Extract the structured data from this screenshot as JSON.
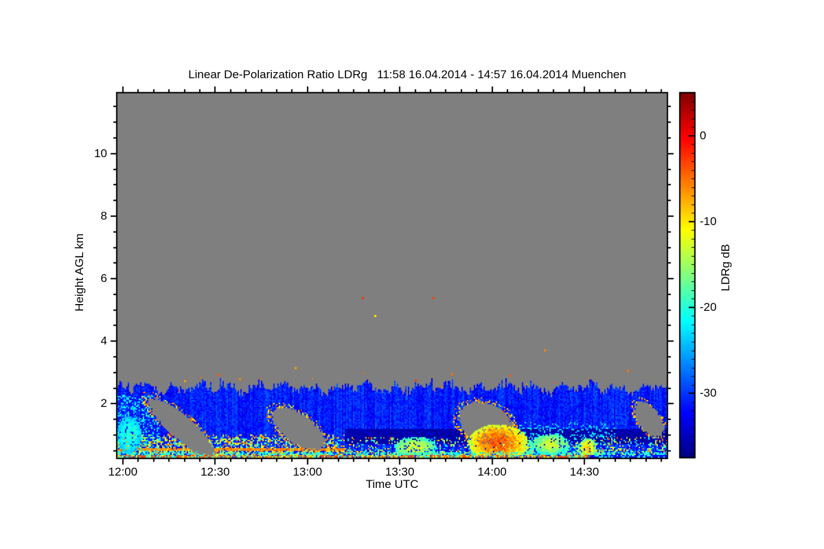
{
  "chart_data": {
    "type": "heatmap",
    "title": "Linear De-Polarization Ratio LDRg   11:58 16.04.2014 - 14:57 16.04.2014 Muenchen",
    "xlabel": "Time UTC",
    "ylabel": "Height AGL km",
    "colorbar_label": "LDRg dB",
    "x_axis": {
      "start": "11:58",
      "end": "14:57",
      "ticks": [
        "12:00",
        "12:30",
        "13:00",
        "13:30",
        "14:00",
        "14:30"
      ],
      "minor_step_minutes": 5
    },
    "y_axis": {
      "min_km": 0.25,
      "max_km": 11.95,
      "ticks": [
        2,
        4,
        6,
        8,
        10
      ],
      "minor_step_km": 0.5
    },
    "colorbar": {
      "min_db": -37.5,
      "max_db": 5,
      "ticks": [
        0,
        -10,
        -20,
        -30
      ],
      "minor_step_db": 1,
      "colormap": "jet",
      "position": "right"
    },
    "no_data_color": "#7f7f7f",
    "axis_color": "#000000",
    "features": {
      "seed": 7,
      "boundary_layer": {
        "top_km_mean": 2.5,
        "top_km_jitter": 0.22,
        "base_db": -31
      },
      "dark_band": {
        "start": "13:12",
        "end": "14:57",
        "h_km": [
          0.72,
          1.18
        ],
        "db": -35
      },
      "surface_speckle": {
        "h_km": [
          0.25,
          0.95
        ],
        "db_min": -23,
        "db_max": -3,
        "dense_until": "13:08"
      },
      "warm_zone_left": {
        "start": "11:58",
        "end": "13:12",
        "h_km": [
          0.25,
          1.0
        ],
        "db_min": -15,
        "db_max": -4
      },
      "red_line": {
        "start": "11:58",
        "end": "13:12",
        "h_km": [
          0.48,
          0.58
        ],
        "db": -6
      },
      "hot_blob": {
        "t": "14:02",
        "h": 0.75,
        "rt": 9,
        "rh": 0.55,
        "db_core": -4,
        "db_edge": -12
      },
      "cyan_patches": [
        {
          "t": "12:02",
          "h": 1.0,
          "rt": 4,
          "rh": 0.6,
          "core": -20,
          "edge": -24
        },
        {
          "t": "13:35",
          "h": 0.6,
          "rt": 7,
          "rh": 0.33,
          "core": -13,
          "edge": -20
        },
        {
          "t": "14:08",
          "h": 0.62,
          "rt": 6,
          "rh": 0.3,
          "core": -12,
          "edge": -20
        },
        {
          "t": "14:19",
          "h": 0.7,
          "rt": 6,
          "rh": 0.33,
          "core": -13,
          "edge": -20
        },
        {
          "t": "14:31",
          "h": 0.55,
          "rt": 3,
          "rh": 0.35,
          "core": -9,
          "edge": -18
        }
      ],
      "gray_wedges": [
        {
          "t": "12:19",
          "h": 1.25,
          "rt": 11,
          "rh": 0.5,
          "slope_km_per_min": -0.075
        },
        {
          "t": "12:57",
          "h": 1.2,
          "rt": 9,
          "rh": 0.55,
          "slope_km_per_min": -0.05
        },
        {
          "t": "13:58",
          "h": 1.35,
          "rt": 9,
          "rh": 0.7,
          "slope_km_per_min": -0.02
        },
        {
          "t": "14:51",
          "h": 1.5,
          "rt": 5,
          "rh": 0.5,
          "slope_km_per_min": -0.06
        }
      ],
      "streak_zones": [
        {
          "start": "11:58",
          "end": "12:12",
          "h_max": 2.3,
          "p": 0.3
        },
        {
          "start": "14:05",
          "end": "14:40",
          "h_max": 1.4,
          "p": 0.18
        }
      ],
      "clutter_stripe": {
        "h_km": [
          0.25,
          0.35
        ],
        "end_strong": "14:32"
      },
      "high_specks": [
        {
          "t": "13:18",
          "h": 5.38,
          "db": -2
        },
        {
          "t": "13:41",
          "h": 5.38,
          "db": -3
        },
        {
          "t": "13:22",
          "h": 4.82,
          "db": -10
        },
        {
          "t": "14:17",
          "h": 3.72,
          "db": -6
        },
        {
          "t": "12:56",
          "h": 3.15,
          "db": -7
        },
        {
          "t": "12:31",
          "h": 2.92,
          "db": -4
        },
        {
          "t": "12:38",
          "h": 2.8,
          "db": -6
        },
        {
          "t": "13:47",
          "h": 2.95,
          "db": -5
        },
        {
          "t": "14:06",
          "h": 2.9,
          "db": -4
        },
        {
          "t": "12:20",
          "h": 2.72,
          "db": -7
        },
        {
          "t": "13:35",
          "h": 2.75,
          "db": -3
        },
        {
          "t": "14:44",
          "h": 3.05,
          "db": -5
        }
      ]
    }
  }
}
